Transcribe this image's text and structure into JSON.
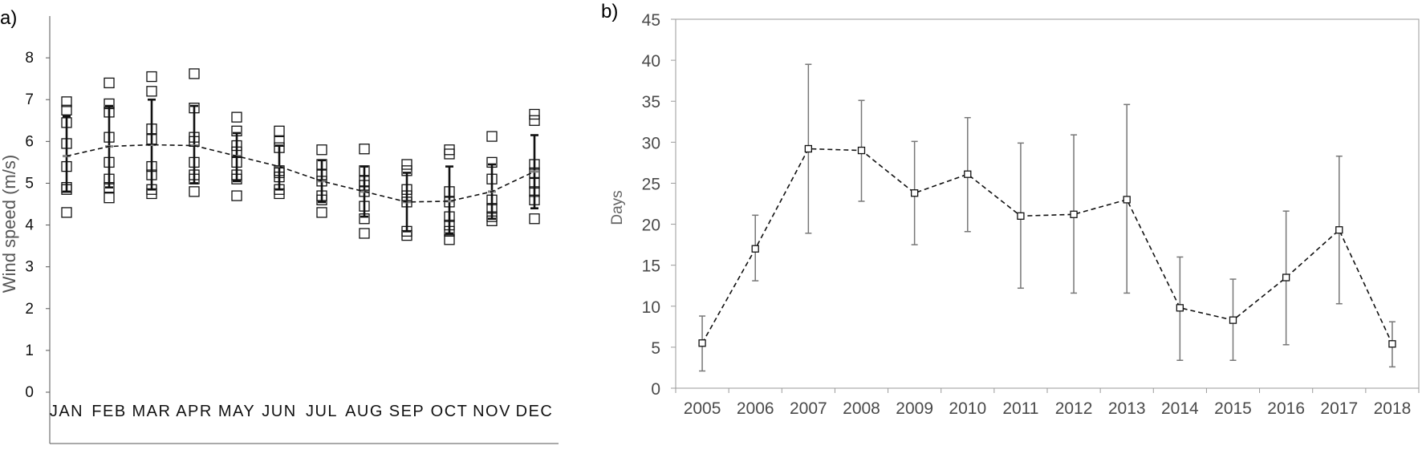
{
  "chart_data": [
    {
      "panel": "a)",
      "type": "scatter",
      "ylabel": "Wind speed (m/s)",
      "xlabel": "",
      "ylim": [
        0,
        9
      ],
      "y_ticks": [
        0,
        1,
        2,
        3,
        4,
        5,
        6,
        7,
        8
      ],
      "categories": [
        "JAN",
        "FEB",
        "MAR",
        "APR",
        "MAY",
        "JUN",
        "JUL",
        "AUG",
        "SEP",
        "OCT",
        "NOV",
        "DEC"
      ],
      "series": [
        {
          "points_per_month": [
            [
              6.95,
              6.75,
              6.45,
              5.95,
              5.4,
              4.9,
              4.85,
              4.3
            ],
            [
              7.4,
              6.9,
              6.7,
              6.1,
              5.5,
              5.1,
              4.9,
              4.65
            ],
            [
              7.55,
              7.2,
              6.3,
              6.05,
              5.4,
              5.2,
              4.85,
              4.75
            ],
            [
              7.62,
              6.8,
              6.1,
              6.0,
              5.5,
              5.2,
              5.1,
              4.8
            ],
            [
              6.58,
              6.25,
              5.9,
              5.75,
              5.5,
              5.2,
              5.1,
              4.7
            ],
            [
              6.25,
              6.0,
              5.85,
              5.3,
              5.25,
              5.15,
              4.85,
              4.75
            ],
            [
              5.8,
              5.45,
              5.2,
              5.05,
              4.7,
              4.6,
              4.3
            ],
            [
              5.82,
              5.3,
              5.05,
              4.95,
              4.8,
              4.45,
              4.15,
              3.8
            ],
            [
              5.45,
              5.3,
              4.85,
              4.7,
              4.55,
              3.85,
              3.75
            ],
            [
              5.8,
              5.7,
              4.8,
              4.55,
              4.2,
              4.0,
              3.85,
              3.65
            ],
            [
              6.12,
              5.5,
              5.1,
              4.6,
              4.4,
              4.2,
              4.1
            ],
            [
              6.65,
              6.5,
              5.45,
              5.25,
              5.0,
              4.8,
              4.6,
              4.15
            ]
          ]
        },
        {
          "values": [
            5.65,
            5.88,
            5.92,
            5.9,
            5.65,
            5.4,
            5.05,
            4.8,
            4.55,
            4.57,
            4.8,
            5.28
          ],
          "error_low": [
            4.8,
            4.9,
            4.85,
            5.0,
            5.05,
            4.85,
            4.55,
            4.2,
            3.85,
            3.8,
            4.15,
            4.4
          ],
          "error_high": [
            6.6,
            6.85,
            7.0,
            6.85,
            6.2,
            5.9,
            5.55,
            5.4,
            5.25,
            5.4,
            5.45,
            6.15
          ]
        }
      ]
    },
    {
      "panel": "b)",
      "type": "line",
      "ylabel": "Days",
      "xlabel": "",
      "ylim": [
        0,
        45
      ],
      "y_ticks": [
        0,
        5,
        10,
        15,
        20,
        25,
        30,
        35,
        40,
        45
      ],
      "categories": [
        "2005",
        "2006",
        "2007",
        "2008",
        "2009",
        "2010",
        "2011",
        "2012",
        "2013",
        "2014",
        "2015",
        "2016",
        "2017",
        "2018"
      ],
      "series": [
        {
          "values": [
            5.5,
            17.0,
            29.2,
            29.0,
            23.8,
            26.1,
            21.0,
            21.2,
            23.0,
            9.8,
            8.3,
            13.5,
            19.3,
            5.4
          ],
          "error_low": [
            2.1,
            13.1,
            18.9,
            22.8,
            17.5,
            19.1,
            12.2,
            11.6,
            11.6,
            3.4,
            3.4,
            5.3,
            10.3,
            2.6
          ],
          "error_high": [
            8.8,
            21.1,
            39.5,
            35.1,
            30.1,
            33.0,
            29.9,
            30.9,
            34.6,
            16.0,
            13.3,
            21.6,
            28.3,
            8.1
          ]
        }
      ]
    }
  ]
}
